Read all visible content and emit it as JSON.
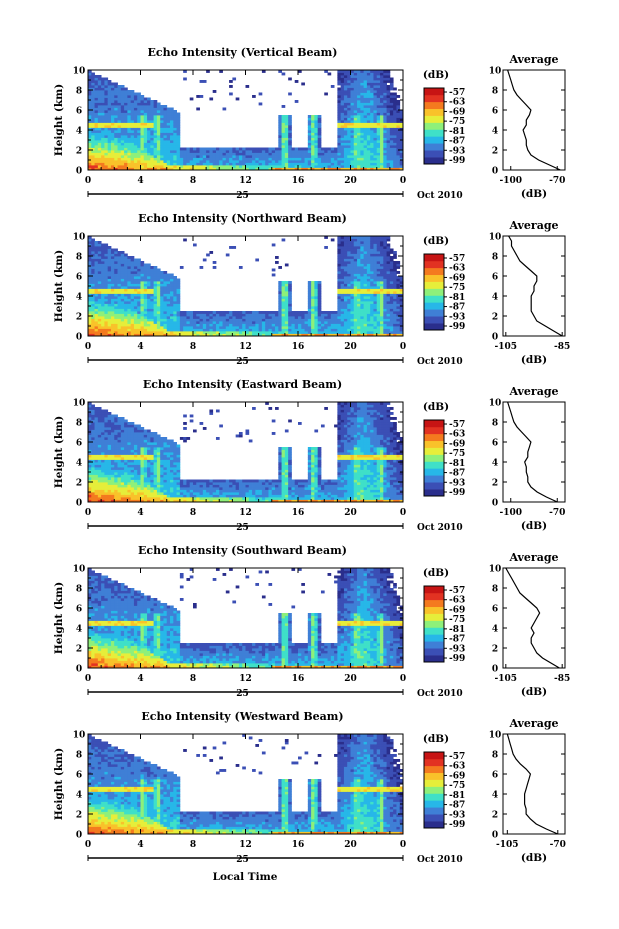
{
  "figure": {
    "xlabel": "Local Time",
    "date_label": "Oct 2010",
    "date_marker": "25"
  },
  "colors": {
    "colormap": [
      "#2a2e8c",
      "#3b4fb5",
      "#3f7fd6",
      "#27b7e8",
      "#3fe0c8",
      "#8ef07a",
      "#e6ee3a",
      "#f9c22a",
      "#f47a1f",
      "#e23222",
      "#c71414"
    ],
    "axis": "#000000",
    "profile_line": "#000000"
  },
  "chart_data": [
    {
      "type": "heatmap",
      "title": "Echo Intensity (Vertical Beam)",
      "ylabel": "Height (km)",
      "x_ticks": [
        "0",
        "4",
        "8",
        "12",
        "16",
        "20",
        "0"
      ],
      "y_ticks": [
        "0",
        "2",
        "4",
        "6",
        "8",
        "10"
      ],
      "xlim": [
        0,
        24
      ],
      "ylim": [
        0,
        10
      ],
      "colorbar": {
        "unit": "(dB)",
        "ticks": [
          "-57",
          "-63",
          "-69",
          "-75",
          "-81",
          "-87",
          "-93",
          "-99"
        ]
      },
      "profile": {
        "title": "Average",
        "xlabel": "(dB)",
        "x_ticks": [
          "-100",
          "-70"
        ],
        "y_ticks": [
          "0",
          "2",
          "4",
          "6",
          "8",
          "10"
        ],
        "xlim": [
          -105,
          -65
        ],
        "heights": [
          0,
          0.5,
          1,
          1.5,
          2,
          2.5,
          3,
          3.5,
          4,
          4.5,
          5,
          5.5,
          6,
          6.5,
          7,
          7.5,
          8,
          8.5,
          9,
          9.5,
          10
        ],
        "values": [
          -68,
          -75,
          -82,
          -87,
          -89,
          -90,
          -90,
          -91,
          -92,
          -90,
          -90,
          -88,
          -87,
          -90,
          -93,
          -96,
          -98,
          -99,
          -100,
          -101,
          -102
        ]
      }
    },
    {
      "type": "heatmap",
      "title": "Echo Intensity (Northward Beam)",
      "ylabel": "Height (km)",
      "x_ticks": [
        "0",
        "4",
        "8",
        "12",
        "16",
        "20",
        "0"
      ],
      "y_ticks": [
        "0",
        "2",
        "4",
        "6",
        "8",
        "10"
      ],
      "xlim": [
        0,
        24
      ],
      "ylim": [
        0,
        10
      ],
      "colorbar": {
        "unit": "(dB)",
        "ticks": [
          "-57",
          "-63",
          "-69",
          "-75",
          "-81",
          "-87",
          "-93",
          "-99"
        ]
      },
      "profile": {
        "title": "Average",
        "xlabel": "(dB)",
        "x_ticks": [
          "-105",
          "-85"
        ],
        "y_ticks": [
          "0",
          "2",
          "4",
          "6",
          "8",
          "10"
        ],
        "xlim": [
          -106,
          -84
        ],
        "heights": [
          0,
          0.5,
          1,
          1.5,
          2,
          2.5,
          3,
          3.5,
          4,
          4.5,
          5,
          5.5,
          6,
          6.5,
          7,
          7.5,
          8,
          8.5,
          9,
          9.5,
          10
        ],
        "values": [
          -85,
          -88,
          -91,
          -94,
          -95,
          -96,
          -96,
          -96,
          -96,
          -95,
          -95,
          -94,
          -94,
          -96,
          -98,
          -100,
          -101,
          -102,
          -103,
          -103,
          -104
        ]
      }
    },
    {
      "type": "heatmap",
      "title": "Echo Intensity (Eastward Beam)",
      "ylabel": "Height (km)",
      "x_ticks": [
        "0",
        "4",
        "8",
        "12",
        "16",
        "20",
        "0"
      ],
      "y_ticks": [
        "0",
        "2",
        "4",
        "6",
        "8",
        "10"
      ],
      "xlim": [
        0,
        24
      ],
      "ylim": [
        0,
        10
      ],
      "colorbar": {
        "unit": "(dB)",
        "ticks": [
          "-57",
          "-63",
          "-69",
          "-75",
          "-81",
          "-87",
          "-93",
          "-99"
        ]
      },
      "profile": {
        "title": "Average",
        "xlabel": "(dB)",
        "x_ticks": [
          "-100",
          "-70"
        ],
        "y_ticks": [
          "0",
          "2",
          "4",
          "6",
          "8",
          "10"
        ],
        "xlim": [
          -105,
          -65
        ],
        "heights": [
          0,
          0.5,
          1,
          1.5,
          2,
          2.5,
          3,
          3.5,
          4,
          4.5,
          5,
          5.5,
          6,
          6.5,
          7,
          7.5,
          8,
          8.5,
          9,
          9.5,
          10
        ],
        "values": [
          -70,
          -77,
          -83,
          -87,
          -89,
          -89,
          -90,
          -90,
          -91,
          -89,
          -89,
          -88,
          -87,
          -90,
          -93,
          -96,
          -98,
          -99,
          -100,
          -101,
          -102
        ]
      }
    },
    {
      "type": "heatmap",
      "title": "Echo Intensity (Southward Beam)",
      "ylabel": "Height (km)",
      "x_ticks": [
        "0",
        "4",
        "8",
        "12",
        "16",
        "20",
        "0"
      ],
      "y_ticks": [
        "0",
        "2",
        "4",
        "6",
        "8",
        "10"
      ],
      "xlim": [
        0,
        24
      ],
      "ylim": [
        0,
        10
      ],
      "colorbar": {
        "unit": "(dB)",
        "ticks": [
          "-57",
          "-63",
          "-69",
          "-75",
          "-81",
          "-87",
          "-93",
          "-99"
        ]
      },
      "profile": {
        "title": "Average",
        "xlabel": "(dB)",
        "x_ticks": [
          "-105",
          "-85"
        ],
        "y_ticks": [
          "0",
          "2",
          "4",
          "6",
          "8",
          "10"
        ],
        "xlim": [
          -106,
          -84
        ],
        "heights": [
          0,
          0.5,
          1,
          1.5,
          2,
          2.5,
          3,
          3.5,
          4,
          4.5,
          5,
          5.5,
          6,
          6.5,
          7,
          7.5,
          8,
          8.5,
          9,
          9.5,
          10
        ],
        "values": [
          -86,
          -89,
          -92,
          -94,
          -95,
          -96,
          -96,
          -95,
          -96,
          -95,
          -94,
          -93,
          -94,
          -96,
          -98,
          -100,
          -101,
          -102,
          -103,
          -104,
          -105
        ]
      }
    },
    {
      "type": "heatmap",
      "title": "Echo Intensity (Westward Beam)",
      "ylabel": "Height (km)",
      "x_ticks": [
        "0",
        "4",
        "8",
        "12",
        "16",
        "20",
        "0"
      ],
      "y_ticks": [
        "0",
        "2",
        "4",
        "6",
        "8",
        "10"
      ],
      "xlim": [
        0,
        24
      ],
      "ylim": [
        0,
        10
      ],
      "colorbar": {
        "unit": "(dB)",
        "ticks": [
          "-57",
          "-63",
          "-69",
          "-75",
          "-81",
          "-87",
          "-93",
          "-99"
        ]
      },
      "profile": {
        "title": "Average",
        "xlabel": "(dB)",
        "x_ticks": [
          "-105",
          "-70"
        ],
        "y_ticks": [
          "0",
          "2",
          "4",
          "6",
          "8",
          "10"
        ],
        "xlim": [
          -108,
          -65
        ],
        "heights": [
          0,
          0.5,
          1,
          1.5,
          2,
          2.5,
          3,
          3.5,
          4,
          4.5,
          5,
          5.5,
          6,
          6.5,
          7,
          7.5,
          8,
          8.5,
          9,
          9.5,
          10
        ],
        "values": [
          -70,
          -78,
          -85,
          -89,
          -92,
          -92,
          -93,
          -93,
          -93,
          -92,
          -91,
          -90,
          -89,
          -92,
          -96,
          -99,
          -101,
          -102,
          -103,
          -104,
          -105
        ]
      }
    }
  ]
}
